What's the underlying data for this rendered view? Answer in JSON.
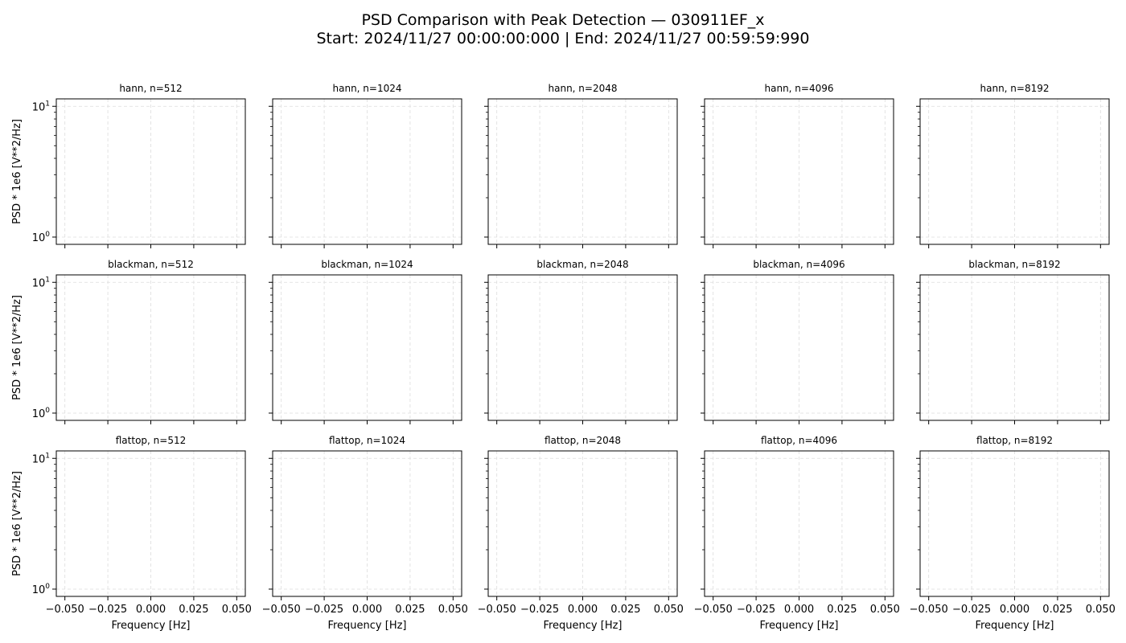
{
  "figure": {
    "title_line1": "PSD Comparison with Peak Detection — 030911EF_x",
    "title_line2": "Start: 2024/11/27 00:00:00:000 | End: 2024/11/27 00:59:59:990"
  },
  "chart_data": {
    "type": "line",
    "layout": "3x5 grid",
    "rows": [
      "hann",
      "blackman",
      "flattop"
    ],
    "columns": [
      "512",
      "1024",
      "2048",
      "4096",
      "8192"
    ],
    "panel_titles": [
      [
        "hann, n=512",
        "hann, n=1024",
        "hann, n=2048",
        "hann, n=4096",
        "hann, n=8192"
      ],
      [
        "blackman, n=512",
        "blackman, n=1024",
        "blackman, n=2048",
        "blackman, n=4096",
        "blackman, n=8192"
      ],
      [
        "flattop, n=512",
        "flattop, n=1024",
        "flattop, n=2048",
        "flattop, n=4096",
        "flattop, n=8192"
      ]
    ],
    "xlabel": "Frequency [Hz]",
    "ylabel": "PSD * 1e6 [V**2/Hz]",
    "x_ticks": [
      -0.05,
      -0.025,
      0.0,
      0.025,
      0.05
    ],
    "x_tick_labels": [
      "−0.050",
      "−0.025",
      "0.000",
      "0.025",
      "0.050"
    ],
    "xlim": [
      -0.055,
      0.055
    ],
    "y_scale": "log",
    "ylim": [
      0.88,
      11.4
    ],
    "y_major_ticks": [
      1,
      10
    ],
    "y_minor_ticks": [
      2,
      3,
      4,
      5,
      6,
      7,
      8,
      9
    ],
    "y_tick_labels": [
      "10^0",
      "10^1"
    ],
    "grid": true,
    "grid_style": "dashed",
    "grid_color": "#dddddd",
    "series": []
  }
}
